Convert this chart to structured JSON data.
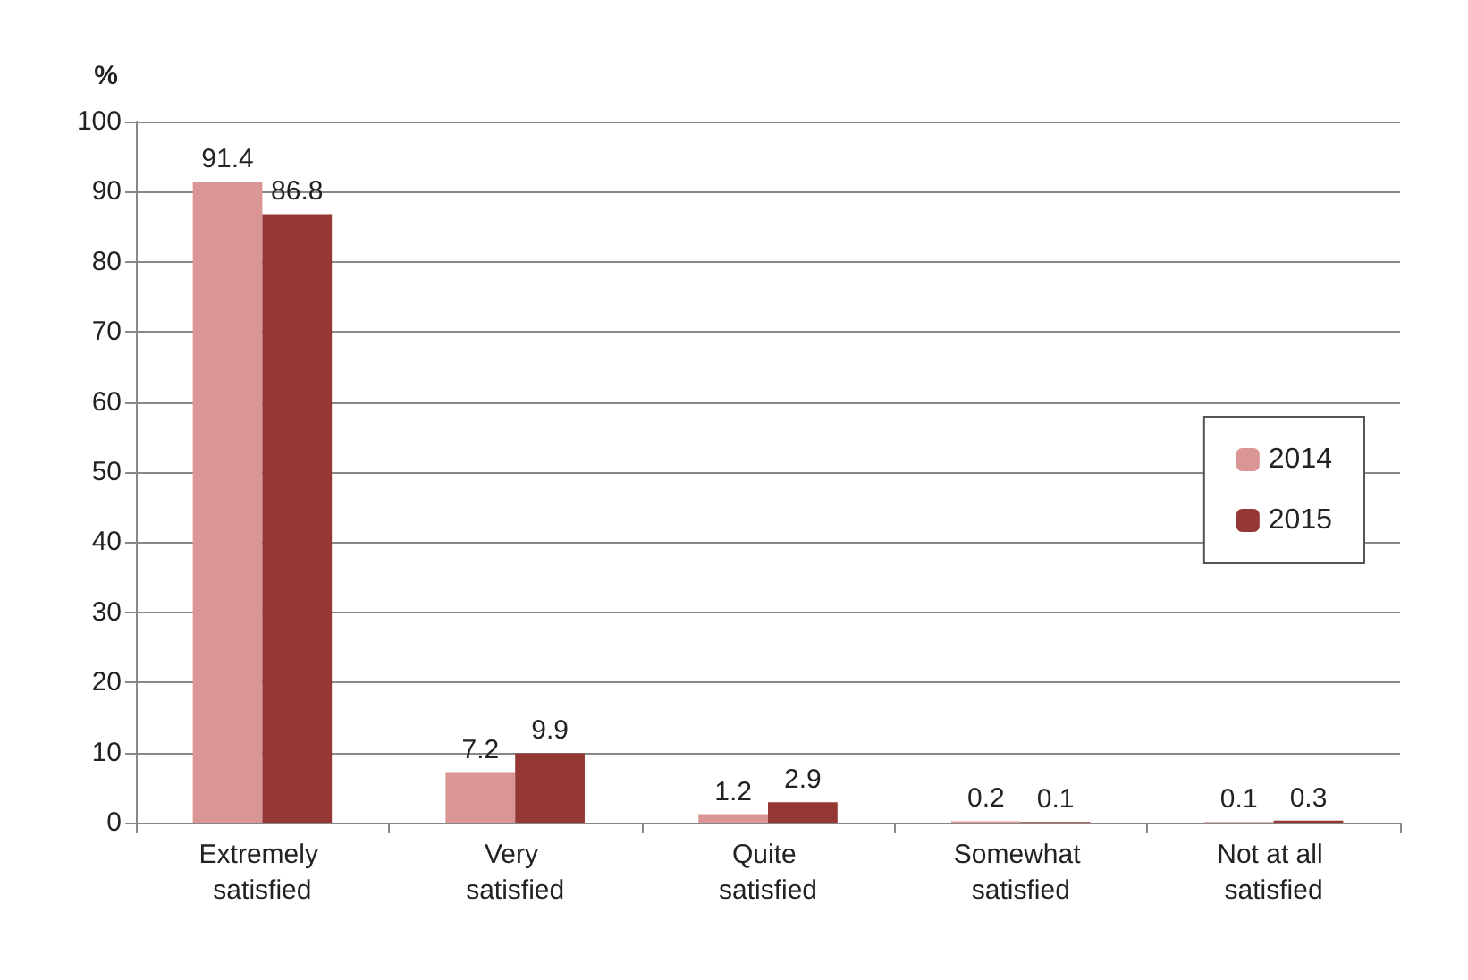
{
  "chart_data": {
    "type": "bar",
    "ylabel": "%",
    "categories": [
      "Extremely satisfied",
      "Very satisfied",
      "Quite satisfied",
      "Somewhat satisfied",
      "Not at all satisfied"
    ],
    "series": [
      {
        "name": "2014",
        "color": "#d99694",
        "values": [
          91.4,
          7.2,
          1.2,
          0.2,
          0.1
        ]
      },
      {
        "name": "2015",
        "color": "#953735",
        "values": [
          86.8,
          9.9,
          2.9,
          0.1,
          0.3
        ]
      }
    ],
    "ylim": [
      0,
      100
    ],
    "yticks": [
      0,
      10,
      20,
      30,
      40,
      50,
      60,
      70,
      80,
      90,
      100
    ],
    "grid": "y",
    "legend": "right",
    "data_labels": true
  }
}
